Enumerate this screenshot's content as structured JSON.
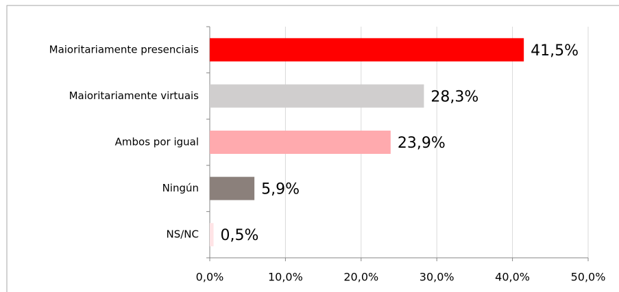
{
  "chart_data": {
    "type": "barh",
    "categories": [
      "Maioritariamente presenciais",
      "Maioritariamente virtuais",
      "Ambos por igual",
      "Ningún",
      "NS/NC"
    ],
    "values": [
      41.5,
      28.3,
      23.9,
      5.9,
      0.5
    ],
    "value_labels": [
      "41,5%",
      "28,3%",
      "23,9%",
      "5,9%",
      "0,5%"
    ],
    "colors": [
      "#ff0000",
      "#d0cece",
      "#ffaaae",
      "#8b807b",
      "#ffe4e6"
    ],
    "xlim": [
      0,
      50
    ],
    "xticks": [
      {
        "value": 0,
        "label": "0,0%"
      },
      {
        "value": 10,
        "label": "10,0%"
      },
      {
        "value": 20,
        "label": "20,0%"
      },
      {
        "value": 30,
        "label": "30,0%"
      },
      {
        "value": 40,
        "label": "40,0%"
      },
      {
        "value": 50,
        "label": "50,0%"
      }
    ],
    "grid": true
  }
}
